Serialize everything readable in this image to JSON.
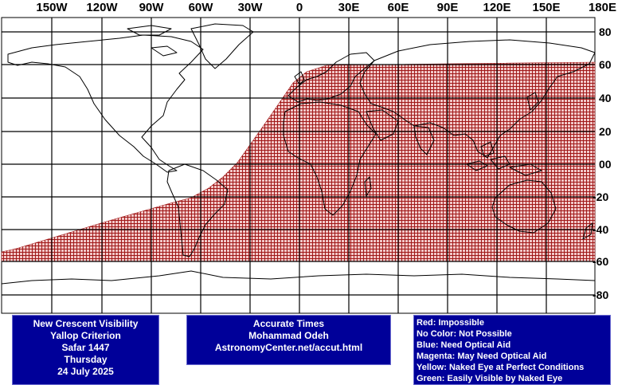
{
  "map": {
    "longitude_labels": [
      "150W",
      "120W",
      "90W",
      "60W",
      "30W",
      "0",
      "30E",
      "60E",
      "90E",
      "120E",
      "150E",
      "180E"
    ],
    "latitude_labels": [
      "80",
      "60",
      "40",
      "20",
      "00",
      "-20",
      "-40",
      "-60",
      "-80"
    ],
    "colors": {
      "grid": "#000000",
      "coast": "#000000",
      "impossible_fill": "#f2c8c8",
      "impossible_mesh": "#a01818",
      "background": "#ffffff"
    },
    "impossible_region": {
      "description_color": "red",
      "north_lat_limit": 60,
      "south_lat_limit": -60
    }
  },
  "info_left": {
    "lines": [
      "New Crescent Visibility",
      "Yallop Criterion",
      "Safar 1447",
      "Thursday",
      "24 July 2025"
    ]
  },
  "info_middle": {
    "lines": [
      "Accurate Times",
      "Mohammad Odeh",
      "AstronomyCenter.net/accut.html"
    ]
  },
  "legend": {
    "lines": [
      "Red: Impossible",
      "No Color: Not Possible",
      "Blue: Need Optical Aid",
      "Magenta: May Need Optical Aid",
      "Yellow: Naked Eye at Perfect Conditions",
      "Green: Easily Visible by Naked Eye"
    ]
  }
}
